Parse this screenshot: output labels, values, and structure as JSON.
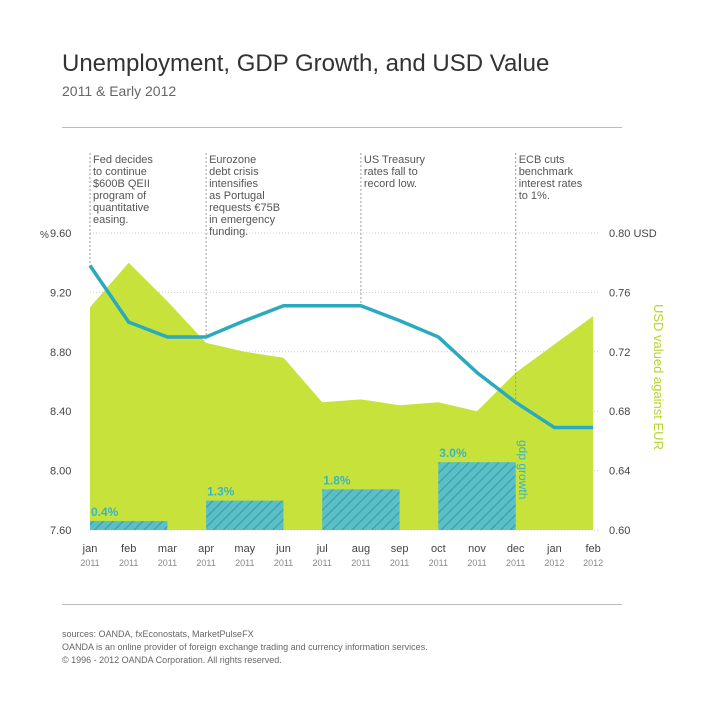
{
  "title": "Unemployment, GDP Growth, and USD Value",
  "subtitle": "2011 & Early 2012",
  "footer": {
    "sources": "sources: OANDA, fxEconostats, MarketPulseFX",
    "about": "OANDA is an online provider of foreign exchange trading and currency information services.",
    "copyright": "© 1996 - 2012 OANDA Corporation. All rights reserved."
  },
  "colors": {
    "area": "#c7e33b",
    "line": "#2aa9bf",
    "bar_fill": "#5bbfc6",
    "bar_hatch": "#3c9fb2",
    "bar_label": "#3ab4c8",
    "right_axis_label": "#b5d62a",
    "grid": "#cccccc",
    "annotation_line": "#999999"
  },
  "chart_data": {
    "type": "area",
    "x": [
      "jan 2011",
      "feb 2011",
      "mar 2011",
      "apr 2011",
      "may 2011",
      "jun 2011",
      "jul 2011",
      "aug 2011",
      "sep 2011",
      "oct 2011",
      "nov 2011",
      "dec 2011",
      "jan 2012",
      "feb 2012"
    ],
    "x_tick_labels": [
      {
        "month": "jan",
        "year": "2011"
      },
      {
        "month": "feb",
        "year": "2011"
      },
      {
        "month": "mar",
        "year": "2011"
      },
      {
        "month": "apr",
        "year": "2011"
      },
      {
        "month": "may",
        "year": "2011"
      },
      {
        "month": "jun",
        "year": "2011"
      },
      {
        "month": "jul",
        "year": "2011"
      },
      {
        "month": "aug",
        "year": "2011"
      },
      {
        "month": "sep",
        "year": "2011"
      },
      {
        "month": "oct",
        "year": "2011"
      },
      {
        "month": "nov",
        "year": "2011"
      },
      {
        "month": "dec",
        "year": "2011"
      },
      {
        "month": "jan",
        "year": "2012"
      },
      {
        "month": "feb",
        "year": "2012"
      }
    ],
    "left_axis": {
      "unit_label": "%",
      "ylim": [
        7.6,
        9.6
      ],
      "ticks": [
        "9.60",
        "9.20",
        "8.80",
        "8.40",
        "8.00",
        "7.60"
      ]
    },
    "right_axis": {
      "label": "USD valued against EUR",
      "ylim": [
        0.6,
        0.8
      ],
      "ticks": [
        "0.80 USD",
        "0.76",
        "0.72",
        "0.68",
        "0.64",
        "0.60"
      ]
    },
    "series": [
      {
        "kind": "area",
        "axis": "left",
        "values": [
          9.1,
          9.4,
          9.14,
          8.86,
          8.8,
          8.76,
          8.46,
          8.48,
          8.44,
          8.46,
          8.4,
          8.66,
          8.85,
          9.04
        ]
      },
      {
        "kind": "line",
        "axis": "right",
        "values": [
          0.778,
          0.74,
          0.73,
          0.73,
          0.741,
          0.751,
          0.751,
          0.751,
          0.741,
          0.73,
          0.706,
          0.686,
          0.669,
          0.669
        ]
      }
    ],
    "gdp_growth": {
      "label": "gdp growth",
      "bars": [
        {
          "label": "0.4%",
          "value": 0.4
        },
        {
          "label": "1.3%",
          "value": 1.3
        },
        {
          "label": "1.8%",
          "value": 1.8
        },
        {
          "label": "3.0%",
          "value": 3.0
        }
      ]
    },
    "annotations": [
      {
        "month": "jan 2011",
        "lines": [
          "Fed decides",
          "to continue",
          "$600B QEII",
          "program of",
          "quantitative",
          "easing."
        ]
      },
      {
        "month": "apr 2011",
        "lines": [
          "Eurozone",
          "debt crisis",
          "intensifies",
          "as Portugal",
          "requests €75B",
          "in emergency",
          "funding."
        ]
      },
      {
        "month": "aug 2011",
        "lines": [
          "US Treasury",
          "rates fall to",
          "record low."
        ]
      },
      {
        "month": "dec 2011",
        "lines": [
          "ECB cuts",
          "benchmark",
          "interest rates",
          "to 1%."
        ]
      }
    ],
    "grid": true,
    "legend": "none"
  }
}
